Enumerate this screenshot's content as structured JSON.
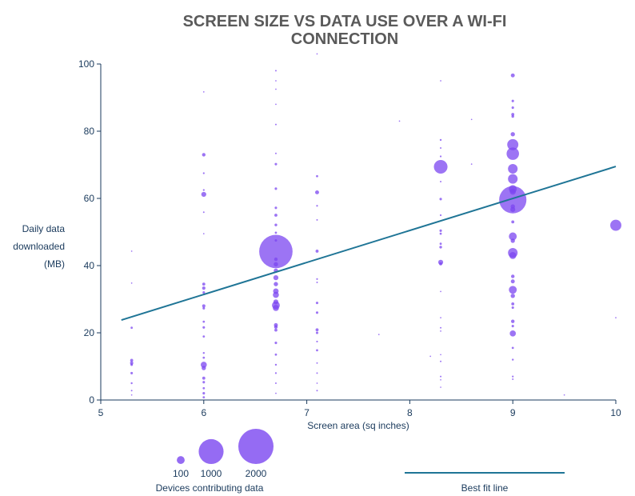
{
  "chart_data": {
    "type": "scatter",
    "title_lines": [
      "SCREEN SIZE VS DATA USE OVER A WI-FI",
      "CONNECTION"
    ],
    "xlabel": "Screen area (sq inches)",
    "ylabel_lines": [
      "Daily data",
      "downloaded",
      "(MB)"
    ],
    "xlim": [
      5,
      10
    ],
    "ylim": [
      0,
      100
    ],
    "xticks": [
      5,
      6,
      7,
      8,
      9,
      10
    ],
    "yticks": [
      0,
      20,
      40,
      60,
      80,
      100
    ],
    "point_color": "#7b46f0",
    "line_color": "#1f7596",
    "axis_color": "#1a3a5c",
    "size_legend": {
      "title": "Devices contributing data",
      "entries": [
        {
          "label": "100",
          "devices": 100
        },
        {
          "label": "1000",
          "devices": 1000
        },
        {
          "label": "2000",
          "devices": 2000
        }
      ]
    },
    "best_fit": {
      "label": "Best fit line",
      "points": [
        [
          5.2,
          23.8
        ],
        [
          10,
          69.5
        ]
      ]
    },
    "points": [
      [
        5.3,
        44.3,
        3
      ],
      [
        5.3,
        34.8,
        3
      ],
      [
        5.3,
        21.5,
        8
      ],
      [
        5.3,
        11.8,
        15
      ],
      [
        5.3,
        11.0,
        18
      ],
      [
        5.3,
        10.5,
        10
      ],
      [
        5.3,
        8.0,
        10
      ],
      [
        5.3,
        5.0,
        6
      ],
      [
        5.3,
        2.8,
        4
      ],
      [
        5.3,
        1.5,
        3
      ],
      [
        6.0,
        91.7,
        3
      ],
      [
        6.0,
        73.0,
        20
      ],
      [
        6.0,
        67.5,
        5
      ],
      [
        6.0,
        62.5,
        5
      ],
      [
        6.0,
        61.2,
        40
      ],
      [
        6.0,
        55.9,
        4
      ],
      [
        6.0,
        49.5,
        3
      ],
      [
        6.0,
        34.5,
        15
      ],
      [
        6.0,
        33.3,
        18
      ],
      [
        6.0,
        32.0,
        10
      ],
      [
        6.0,
        28.0,
        18
      ],
      [
        6.0,
        27.3,
        10
      ],
      [
        6.0,
        23.3,
        8
      ],
      [
        6.0,
        21.6,
        10
      ],
      [
        6.0,
        18.9,
        8
      ],
      [
        6.0,
        14.0,
        6
      ],
      [
        6.0,
        12.6,
        8
      ],
      [
        6.0,
        10.5,
        60
      ],
      [
        6.0,
        9.5,
        30
      ],
      [
        6.0,
        6.5,
        15
      ],
      [
        6.0,
        5.3,
        10
      ],
      [
        6.0,
        3.5,
        8
      ],
      [
        6.0,
        2.0,
        10
      ],
      [
        6.0,
        0.8,
        8
      ],
      [
        6.7,
        98.0,
        4
      ],
      [
        6.7,
        95.0,
        3
      ],
      [
        6.7,
        92.5,
        3
      ],
      [
        6.7,
        88.0,
        3
      ],
      [
        6.7,
        82.0,
        4
      ],
      [
        6.7,
        73.4,
        4
      ],
      [
        6.7,
        70.2,
        10
      ],
      [
        6.7,
        62.9,
        10
      ],
      [
        6.7,
        57.2,
        10
      ],
      [
        6.7,
        55.0,
        15
      ],
      [
        6.7,
        52.1,
        12
      ],
      [
        6.7,
        49.8,
        8
      ],
      [
        6.7,
        47.5,
        10
      ],
      [
        6.7,
        44.2,
        1800
      ],
      [
        6.7,
        41.9,
        20
      ],
      [
        6.7,
        40.4,
        30
      ],
      [
        6.7,
        38.5,
        30
      ],
      [
        6.7,
        36.4,
        40
      ],
      [
        6.7,
        34.5,
        30
      ],
      [
        6.7,
        32.4,
        50
      ],
      [
        6.7,
        31.3,
        60
      ],
      [
        6.7,
        29.2,
        40
      ],
      [
        6.7,
        28.2,
        100
      ],
      [
        6.7,
        27.4,
        60
      ],
      [
        6.7,
        22.3,
        25
      ],
      [
        6.7,
        21.7,
        20
      ],
      [
        6.7,
        20.8,
        15
      ],
      [
        6.7,
        17.0,
        10
      ],
      [
        6.7,
        13.5,
        8
      ],
      [
        6.7,
        10.5,
        6
      ],
      [
        6.7,
        8.0,
        5
      ],
      [
        6.7,
        5.0,
        4
      ],
      [
        6.7,
        2.0,
        3
      ],
      [
        7.1,
        103.0,
        3
      ],
      [
        7.1,
        66.6,
        8
      ],
      [
        7.1,
        61.8,
        25
      ],
      [
        7.1,
        57.8,
        5
      ],
      [
        7.1,
        53.6,
        4
      ],
      [
        7.1,
        44.3,
        15
      ],
      [
        7.1,
        36.0,
        5
      ],
      [
        7.1,
        35.0,
        4
      ],
      [
        7.1,
        28.9,
        10
      ],
      [
        7.1,
        26.0,
        10
      ],
      [
        7.1,
        20.9,
        15
      ],
      [
        7.1,
        20.0,
        10
      ],
      [
        7.1,
        17.4,
        5
      ],
      [
        7.1,
        14.8,
        8
      ],
      [
        7.1,
        11.0,
        4
      ],
      [
        7.1,
        8.0,
        4
      ],
      [
        7.1,
        5.0,
        3
      ],
      [
        7.1,
        2.8,
        4
      ],
      [
        8.3,
        95.0,
        3
      ],
      [
        8.3,
        77.4,
        6
      ],
      [
        8.3,
        75.0,
        4
      ],
      [
        8.3,
        72.5,
        5
      ],
      [
        8.3,
        69.4,
        300
      ],
      [
        8.3,
        65.0,
        4
      ],
      [
        8.3,
        59.8,
        10
      ],
      [
        8.3,
        55.0,
        5
      ],
      [
        8.3,
        50.4,
        10
      ],
      [
        8.3,
        49.5,
        8
      ],
      [
        8.3,
        46.5,
        8
      ],
      [
        8.3,
        45.5,
        12
      ],
      [
        8.3,
        41.0,
        40
      ],
      [
        8.3,
        40.5,
        15
      ],
      [
        8.3,
        32.3,
        3
      ],
      [
        8.3,
        24.5,
        3
      ],
      [
        8.3,
        21.5,
        4
      ],
      [
        8.3,
        20.5,
        3
      ],
      [
        8.3,
        13.5,
        3
      ],
      [
        8.3,
        11.5,
        4
      ],
      [
        8.3,
        7.0,
        4
      ],
      [
        8.3,
        6.0,
        3
      ],
      [
        8.3,
        3.8,
        3
      ],
      [
        9.0,
        96.6,
        25
      ],
      [
        9.0,
        89.0,
        10
      ],
      [
        9.0,
        87.0,
        10
      ],
      [
        9.0,
        85.0,
        15
      ],
      [
        9.0,
        84.4,
        12
      ],
      [
        9.0,
        79.1,
        30
      ],
      [
        9.0,
        76.0,
        200
      ],
      [
        9.0,
        73.3,
        250
      ],
      [
        9.0,
        68.8,
        150
      ],
      [
        9.0,
        65.8,
        150
      ],
      [
        9.0,
        62.8,
        100
      ],
      [
        9.0,
        62.0,
        60
      ],
      [
        9.0,
        59.6,
        1200
      ],
      [
        9.0,
        57.6,
        30
      ],
      [
        9.0,
        56.7,
        40
      ],
      [
        9.0,
        53.0,
        15
      ],
      [
        9.0,
        48.7,
        100
      ],
      [
        9.0,
        47.4,
        30
      ],
      [
        9.0,
        43.8,
        150
      ],
      [
        9.0,
        43.0,
        80
      ],
      [
        9.0,
        36.8,
        20
      ],
      [
        9.0,
        35.3,
        25
      ],
      [
        9.0,
        32.8,
        100
      ],
      [
        9.0,
        31.0,
        30
      ],
      [
        9.0,
        28.6,
        15
      ],
      [
        9.0,
        27.5,
        10
      ],
      [
        9.0,
        23.4,
        20
      ],
      [
        9.0,
        22.0,
        10
      ],
      [
        9.0,
        19.8,
        60
      ],
      [
        9.0,
        15.5,
        8
      ],
      [
        9.0,
        12.0,
        6
      ],
      [
        9.0,
        7.0,
        5
      ],
      [
        9.0,
        6.2,
        4
      ],
      [
        10.0,
        52.0,
        200
      ],
      [
        10.0,
        24.5,
        3
      ],
      [
        8.6,
        83.5,
        3
      ],
      [
        8.6,
        70.2,
        3
      ],
      [
        9.5,
        1.5,
        3
      ],
      [
        7.7,
        19.5,
        3
      ],
      [
        7.9,
        83.0,
        3
      ],
      [
        8.2,
        13.0,
        3
      ]
    ]
  }
}
